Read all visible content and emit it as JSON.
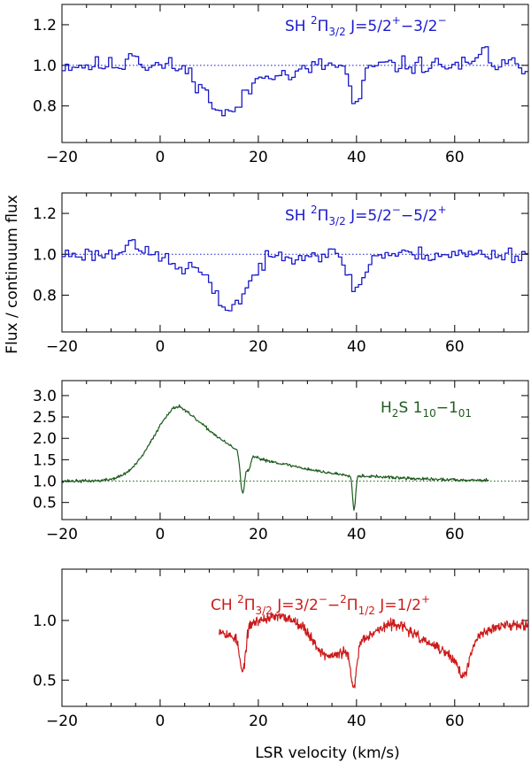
{
  "chart_data": {
    "type": "line",
    "xlabel": "LSR velocity (km/s)",
    "ylabel": "Flux / continuum flux",
    "x_ticks": [
      -20,
      0,
      20,
      40,
      60
    ],
    "x_tick_labels": [
      "−20",
      "0",
      "20",
      "40",
      "60"
    ],
    "panels": [
      {
        "id": "sh-a",
        "label": {
          "main": "SH ",
          "sup1": "2",
          "pi": "Π",
          "sub": "3/2",
          "tail": " J=5/2",
          "sup2": "+",
          "mid": "−3/2",
          "sup3": "−"
        },
        "color": "#1a1acc",
        "style": "step",
        "xlim": [
          -20,
          75
        ],
        "ylim": [
          0.62,
          1.3
        ],
        "y_ticks": [
          0.8,
          1.0,
          1.2
        ],
        "y_tick_labels": [
          "0.8",
          "1.0",
          "1.2"
        ],
        "continuum": 1.0,
        "x_range": [
          -20,
          75
        ],
        "points": 140,
        "noise": 0.035,
        "seed": 11,
        "dips": [
          [
            13.5,
            4.0,
            0.24
          ],
          [
            40.0,
            1.2,
            0.2
          ],
          [
            26.5,
            2.5,
            0.05
          ]
        ],
        "bumps": [
          [
            -5.5,
            0.8,
            0.08
          ],
          [
            66.0,
            0.8,
            0.08
          ]
        ]
      },
      {
        "id": "sh-b",
        "label": {
          "main": "SH ",
          "sup1": "2",
          "pi": "Π",
          "sub": "3/2",
          "tail": " J=5/2",
          "sup2": "−",
          "mid": "−5/2",
          "sup3": "+"
        },
        "color": "#1a1acc",
        "style": "step",
        "xlim": [
          -20,
          75
        ],
        "ylim": [
          0.62,
          1.3
        ],
        "y_ticks": [
          0.8,
          1.0,
          1.2
        ],
        "y_tick_labels": [
          "0.8",
          "1.0",
          "1.2"
        ],
        "continuum": 1.0,
        "x_range": [
          -20,
          75
        ],
        "points": 140,
        "noise": 0.03,
        "seed": 23,
        "dips": [
          [
            14.0,
            3.8,
            0.26
          ],
          [
            40.0,
            1.6,
            0.17
          ],
          [
            4.0,
            2.0,
            0.06
          ]
        ],
        "bumps": [
          [
            -6.0,
            1.0,
            0.09
          ]
        ]
      },
      {
        "id": "h2s",
        "label": {
          "main": "H",
          "sub1": "2",
          "mid": "S 1",
          "sub2": "10",
          "dash": "−1",
          "sub3": "01"
        },
        "color": "#1e5c1e",
        "style": "line",
        "xlim": [
          -20,
          75
        ],
        "ylim": [
          0.1,
          3.35
        ],
        "y_ticks": [
          0.5,
          1.0,
          1.5,
          2.0,
          2.5,
          3.0
        ],
        "y_tick_labels": [
          "0.5",
          "1.0",
          "1.5",
          "2.0",
          "2.5",
          "3.0"
        ],
        "continuum": 1.0,
        "x_range": [
          -20,
          67
        ],
        "points": 700,
        "noise": 0.03,
        "seed": 37,
        "base_profile": "h2s",
        "dips": [
          [
            16.8,
            0.45,
            0.95
          ],
          [
            39.5,
            0.3,
            0.8
          ],
          [
            18.0,
            0.4,
            0.35
          ]
        ],
        "bumps": []
      },
      {
        "id": "ch",
        "label": {
          "main": "CH ",
          "sup1": "2",
          "pi": "Π",
          "sub": "3/2",
          "tail": " J=3/2",
          "sup2": "−",
          "mid": "−",
          "sup4": "2",
          "pi2": "Π",
          "subb": "1/2",
          "tail2": " J=1/2",
          "sup3": "+"
        },
        "color": "#cc1a1a",
        "style": "line",
        "xlim": [
          -20,
          75
        ],
        "ylim": [
          0.28,
          1.43
        ],
        "y_ticks": [
          0.5,
          1.0
        ],
        "y_tick_labels": [
          "0.5",
          "1.0"
        ],
        "continuum": null,
        "x_range": [
          12,
          75
        ],
        "points": 700,
        "noise": 0.035,
        "seed": 53,
        "base_profile": "ch",
        "dips": [
          [
            16.8,
            0.6,
            0.35
          ],
          [
            39.4,
            0.6,
            0.35
          ],
          [
            62.0,
            1.0,
            0.18
          ]
        ],
        "bumps": []
      }
    ]
  }
}
